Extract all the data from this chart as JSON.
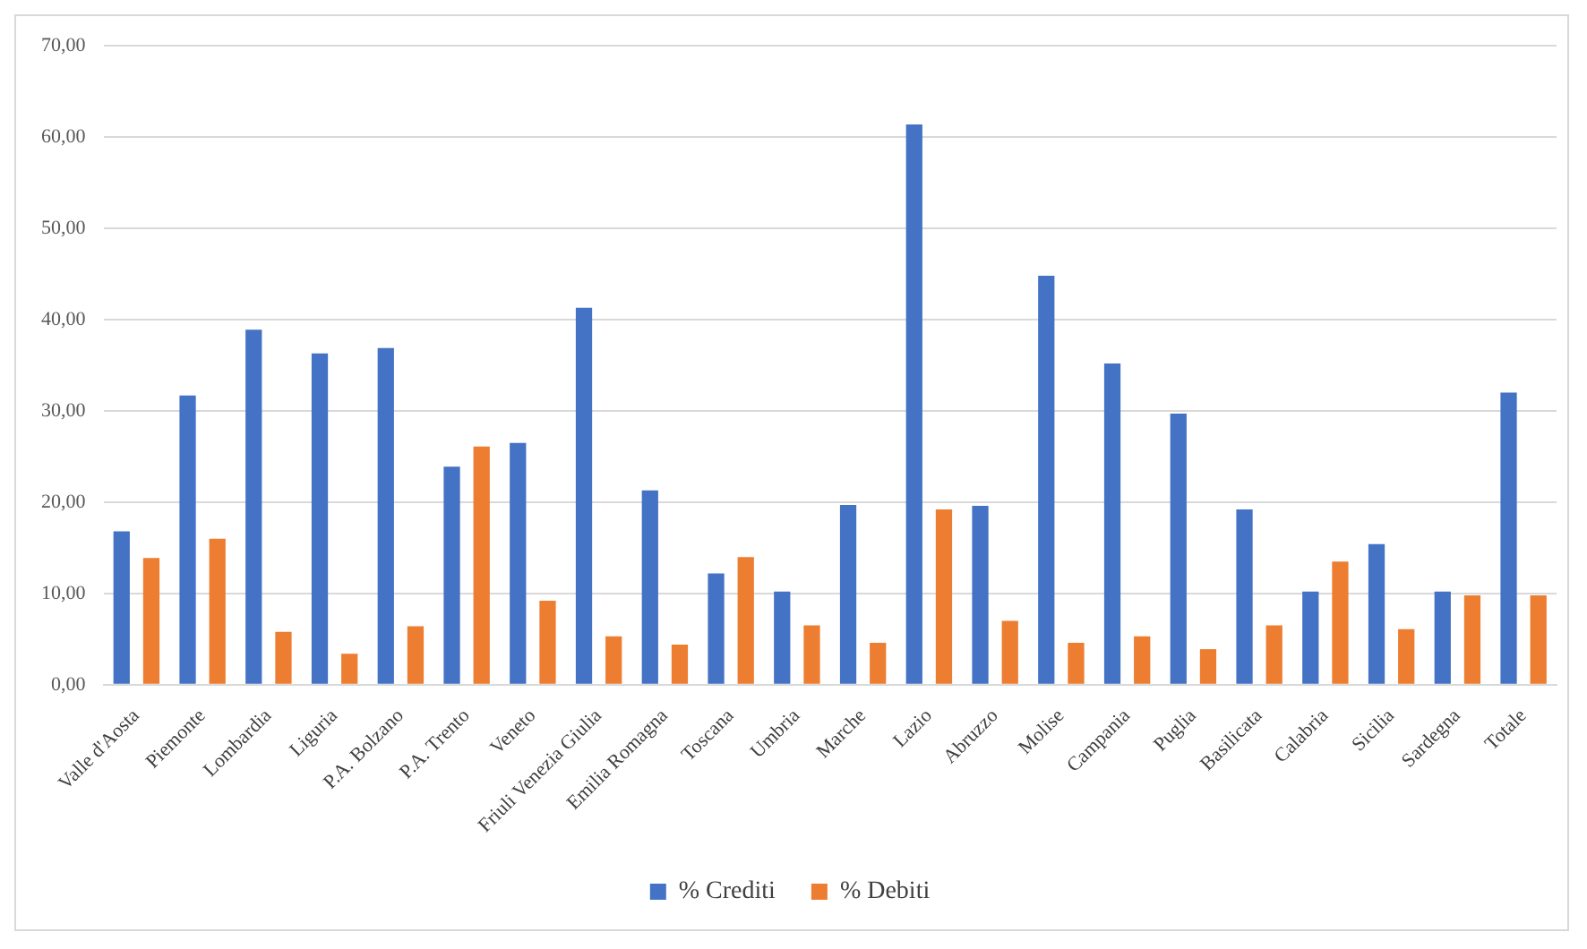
{
  "chart_data": {
    "type": "bar",
    "categories": [
      "Valle d'Aosta",
      "Piemonte",
      "Lombardia",
      "Liguria",
      "P.A. Bolzano",
      "P.A. Trento",
      "Veneto",
      "Friuli Venezia Giulia",
      "Emilia Romagna",
      "Toscana",
      "Umbria",
      "Marche",
      "Lazio",
      "Abruzzo",
      "Molise",
      "Campania",
      "Puglia",
      "Basilicata",
      "Calabria",
      "Sicilia",
      "Sardegna",
      "Totale"
    ],
    "series": [
      {
        "name": "% Crediti",
        "color": "#4472c4",
        "values": [
          16.8,
          31.7,
          38.9,
          36.3,
          36.9,
          23.9,
          26.5,
          41.3,
          21.3,
          12.2,
          10.2,
          19.7,
          61.4,
          19.6,
          44.8,
          35.2,
          29.7,
          19.2,
          10.2,
          15.4,
          10.2,
          32.0
        ]
      },
      {
        "name": "% Debiti",
        "color": "#ed7d31",
        "values": [
          13.9,
          16.0,
          5.8,
          3.4,
          6.4,
          26.1,
          9.2,
          5.3,
          4.4,
          14.0,
          6.5,
          4.6,
          19.2,
          7.0,
          4.6,
          5.3,
          3.9,
          6.5,
          13.5,
          6.1,
          9.8,
          9.8
        ]
      }
    ],
    "ylim": [
      0,
      70
    ],
    "yticks": [
      {
        "value": 0,
        "label": "0,00"
      },
      {
        "value": 10,
        "label": "10,00"
      },
      {
        "value": 20,
        "label": "20,00"
      },
      {
        "value": 30,
        "label": "30,00"
      },
      {
        "value": 40,
        "label": "40,00"
      },
      {
        "value": 50,
        "label": "50,00"
      },
      {
        "value": 60,
        "label": "60,00"
      },
      {
        "value": 70,
        "label": "70,00"
      }
    ],
    "grid": "y",
    "legend": "bottom"
  }
}
